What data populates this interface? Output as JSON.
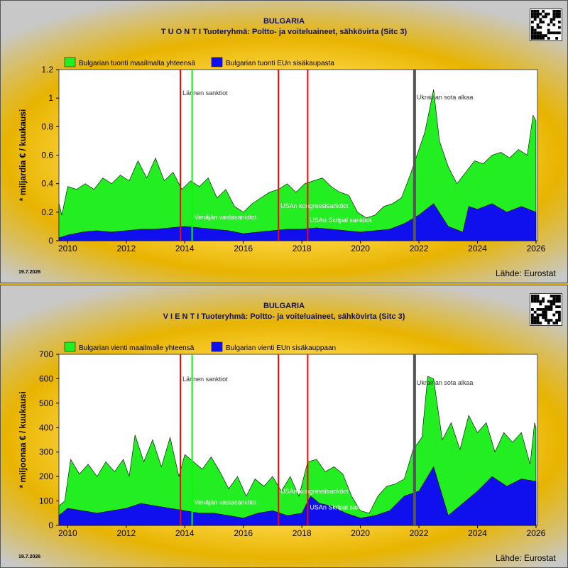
{
  "charts": [
    {
      "country": "BULGARIA",
      "subtitle": "T U O N T I Tuoteryhmä: Poltto- ja voiteluaineet, sähkövirta (Sitc 3)",
      "date_stamp": "19.7.2026",
      "source": "Lähde: Eurostat",
      "colors": {
        "world": "#22ee22",
        "eu": "#1010ee"
      },
      "chart_data": {
        "type": "area",
        "ylabel": "* miljardia € / kuukausi",
        "ylim": [
          0,
          1.2
        ],
        "yticks": [
          "0",
          "0.2",
          "0.4",
          "0.6",
          "0.8",
          "1",
          "1.2"
        ],
        "xlim": [
          2009.7,
          2026.05
        ],
        "xticks": [
          "2010",
          "2012",
          "2014",
          "2016",
          "2018",
          "2020",
          "2022",
          "2024",
          "2026"
        ],
        "legend": [
          "Bulgarian tuonti maailmalta yhteensä",
          "Bulgarian tuonti EUn sisäkaupasta"
        ],
        "series": [
          {
            "name": "Bulgarian tuonti maailmalta yhteensä",
            "points": [
              [
                2009.7,
                0.26
              ],
              [
                2009.8,
                0.18
              ],
              [
                2010.0,
                0.38
              ],
              [
                2010.3,
                0.36
              ],
              [
                2010.6,
                0.4
              ],
              [
                2010.9,
                0.36
              ],
              [
                2011.2,
                0.44
              ],
              [
                2011.5,
                0.4
              ],
              [
                2011.8,
                0.46
              ],
              [
                2012.1,
                0.42
              ],
              [
                2012.4,
                0.56
              ],
              [
                2012.7,
                0.44
              ],
              [
                2013.0,
                0.58
              ],
              [
                2013.3,
                0.42
              ],
              [
                2013.6,
                0.48
              ],
              [
                2013.9,
                0.36
              ],
              [
                2014.2,
                0.42
              ],
              [
                2014.5,
                0.38
              ],
              [
                2014.8,
                0.44
              ],
              [
                2015.1,
                0.3
              ],
              [
                2015.4,
                0.36
              ],
              [
                2015.7,
                0.24
              ],
              [
                2016.0,
                0.2
              ],
              [
                2016.3,
                0.26
              ],
              [
                2016.6,
                0.3
              ],
              [
                2016.9,
                0.34
              ],
              [
                2017.2,
                0.36
              ],
              [
                2017.5,
                0.4
              ],
              [
                2017.8,
                0.34
              ],
              [
                2018.1,
                0.4
              ],
              [
                2018.4,
                0.42
              ],
              [
                2018.7,
                0.44
              ],
              [
                2019.0,
                0.38
              ],
              [
                2019.3,
                0.34
              ],
              [
                2019.6,
                0.32
              ],
              [
                2019.9,
                0.2
              ],
              [
                2020.2,
                0.16
              ],
              [
                2020.5,
                0.18
              ],
              [
                2020.8,
                0.24
              ],
              [
                2021.1,
                0.26
              ],
              [
                2021.4,
                0.3
              ],
              [
                2021.7,
                0.46
              ],
              [
                2022.0,
                0.64
              ],
              [
                2022.2,
                0.76
              ],
              [
                2022.5,
                1.06
              ],
              [
                2022.7,
                0.7
              ],
              [
                2023.0,
                0.52
              ],
              [
                2023.3,
                0.4
              ],
              [
                2023.6,
                0.48
              ],
              [
                2023.9,
                0.56
              ],
              [
                2024.2,
                0.54
              ],
              [
                2024.5,
                0.6
              ],
              [
                2024.8,
                0.62
              ],
              [
                2025.1,
                0.58
              ],
              [
                2025.4,
                0.64
              ],
              [
                2025.7,
                0.6
              ],
              [
                2025.9,
                0.88
              ],
              [
                2026.0,
                0.84
              ]
            ]
          },
          {
            "name": "Bulgarian tuonti EUn sisäkaupasta",
            "points": [
              [
                2009.7,
                0.02
              ],
              [
                2010.0,
                0.04
              ],
              [
                2010.5,
                0.06
              ],
              [
                2011.0,
                0.07
              ],
              [
                2011.5,
                0.06
              ],
              [
                2012.0,
                0.07
              ],
              [
                2012.5,
                0.08
              ],
              [
                2013.0,
                0.08
              ],
              [
                2013.5,
                0.09
              ],
              [
                2014.0,
                0.1
              ],
              [
                2014.5,
                0.09
              ],
              [
                2015.0,
                0.08
              ],
              [
                2015.5,
                0.07
              ],
              [
                2016.0,
                0.05
              ],
              [
                2016.5,
                0.06
              ],
              [
                2017.0,
                0.07
              ],
              [
                2017.5,
                0.08
              ],
              [
                2018.0,
                0.08
              ],
              [
                2018.5,
                0.09
              ],
              [
                2019.0,
                0.08
              ],
              [
                2019.5,
                0.07
              ],
              [
                2020.0,
                0.06
              ],
              [
                2020.5,
                0.07
              ],
              [
                2021.0,
                0.08
              ],
              [
                2021.5,
                0.12
              ],
              [
                2022.0,
                0.18
              ],
              [
                2022.5,
                0.26
              ],
              [
                2023.0,
                0.1
              ],
              [
                2023.5,
                0.06
              ],
              [
                2023.7,
                0.24
              ],
              [
                2024.0,
                0.22
              ],
              [
                2024.5,
                0.26
              ],
              [
                2025.0,
                0.2
              ],
              [
                2025.5,
                0.24
              ],
              [
                2026.0,
                0.2
              ]
            ]
          }
        ],
        "events": [
          {
            "x": 2013.85,
            "color": "#ff0000",
            "label": "Lännen sanktiot",
            "label_y": 1.02
          },
          {
            "x": 2014.25,
            "color": "#00ff00",
            "label": "Venäjän vastasanktiot",
            "label_y": 0.15
          },
          {
            "x": 2017.2,
            "color": "#ff0000",
            "label": "USAn kongressisanktiot",
            "label_y": 0.23
          },
          {
            "x": 2018.2,
            "color": "#ff0000",
            "label": "USAn Skripal sanktiot",
            "label_y": 0.13
          },
          {
            "x": 2021.85,
            "color": "#555555",
            "label": "Ukrainan sota alkaa",
            "label_y": 0.99
          }
        ]
      }
    },
    {
      "country": "BULGARIA",
      "subtitle": "V I E N T I Tuoteryhmä: Poltto- ja voiteluaineet, sähkövirta (Sitc 3)",
      "date_stamp": "19.7.2026",
      "source": "Lähde: Eurostat",
      "colors": {
        "world": "#22ee22",
        "eu": "#1010ee"
      },
      "chart_data": {
        "type": "area",
        "ylabel": "* miljoonaa € / kuukausi",
        "ylim": [
          0,
          700
        ],
        "yticks": [
          "0",
          "100",
          "200",
          "300",
          "400",
          "500",
          "600",
          "700"
        ],
        "xlim": [
          2009.7,
          2026.05
        ],
        "xticks": [
          "2010",
          "2012",
          "2014",
          "2016",
          "2018",
          "2020",
          "2022",
          "2024",
          "2026"
        ],
        "legend": [
          "Bulgarian vienti maailmalle yhteensä",
          "Bulgarian vienti EUn sisäkauppaan"
        ],
        "series": [
          {
            "name": "Bulgarian vienti maailmalle yhteensä",
            "points": [
              [
                2009.7,
                80
              ],
              [
                2009.9,
                100
              ],
              [
                2010.1,
                270
              ],
              [
                2010.4,
                210
              ],
              [
                2010.7,
                250
              ],
              [
                2011.0,
                200
              ],
              [
                2011.3,
                260
              ],
              [
                2011.6,
                220
              ],
              [
                2011.9,
                270
              ],
              [
                2012.1,
                200
              ],
              [
                2012.3,
                370
              ],
              [
                2012.6,
                260
              ],
              [
                2012.9,
                350
              ],
              [
                2013.2,
                240
              ],
              [
                2013.5,
                360
              ],
              [
                2013.8,
                200
              ],
              [
                2014.0,
                290
              ],
              [
                2014.3,
                260
              ],
              [
                2014.6,
                230
              ],
              [
                2014.9,
                280
              ],
              [
                2015.2,
                220
              ],
              [
                2015.5,
                150
              ],
              [
                2015.8,
                200
              ],
              [
                2016.1,
                120
              ],
              [
                2016.4,
                190
              ],
              [
                2016.7,
                160
              ],
              [
                2017.0,
                200
              ],
              [
                2017.3,
                140
              ],
              [
                2017.6,
                200
              ],
              [
                2017.9,
                120
              ],
              [
                2018.2,
                260
              ],
              [
                2018.5,
                270
              ],
              [
                2018.8,
                220
              ],
              [
                2019.1,
                240
              ],
              [
                2019.4,
                210
              ],
              [
                2019.7,
                120
              ],
              [
                2020.0,
                60
              ],
              [
                2020.3,
                50
              ],
              [
                2020.6,
                120
              ],
              [
                2020.9,
                160
              ],
              [
                2021.2,
                170
              ],
              [
                2021.5,
                190
              ],
              [
                2021.8,
                310
              ],
              [
                2022.1,
                360
              ],
              [
                2022.3,
                610
              ],
              [
                2022.5,
                600
              ],
              [
                2022.8,
                350
              ],
              [
                2023.1,
                420
              ],
              [
                2023.4,
                310
              ],
              [
                2023.7,
                450
              ],
              [
                2024.0,
                380
              ],
              [
                2024.3,
                420
              ],
              [
                2024.6,
                300
              ],
              [
                2024.9,
                380
              ],
              [
                2025.2,
                340
              ],
              [
                2025.5,
                380
              ],
              [
                2025.8,
                250
              ],
              [
                2025.95,
                420
              ],
              [
                2026.0,
                400
              ]
            ]
          },
          {
            "name": "Bulgarian vienti EUn sisäkauppaan",
            "points": [
              [
                2009.7,
                40
              ],
              [
                2010.0,
                70
              ],
              [
                2010.5,
                60
              ],
              [
                2011.0,
                50
              ],
              [
                2011.5,
                60
              ],
              [
                2012.0,
                70
              ],
              [
                2012.5,
                90
              ],
              [
                2013.0,
                80
              ],
              [
                2013.5,
                70
              ],
              [
                2014.0,
                60
              ],
              [
                2014.5,
                50
              ],
              [
                2015.0,
                50
              ],
              [
                2015.5,
                40
              ],
              [
                2016.0,
                30
              ],
              [
                2016.5,
                50
              ],
              [
                2017.0,
                60
              ],
              [
                2017.5,
                40
              ],
              [
                2018.0,
                50
              ],
              [
                2018.3,
                120
              ],
              [
                2018.6,
                90
              ],
              [
                2019.0,
                80
              ],
              [
                2019.5,
                50
              ],
              [
                2020.0,
                30
              ],
              [
                2020.5,
                40
              ],
              [
                2021.0,
                60
              ],
              [
                2021.5,
                120
              ],
              [
                2022.0,
                140
              ],
              [
                2022.5,
                240
              ],
              [
                2023.0,
                40
              ],
              [
                2023.5,
                90
              ],
              [
                2024.0,
                140
              ],
              [
                2024.5,
                200
              ],
              [
                2025.0,
                160
              ],
              [
                2025.5,
                190
              ],
              [
                2026.0,
                180
              ]
            ]
          }
        ],
        "events": [
          {
            "x": 2013.85,
            "color": "#ff0000",
            "label": "Lännen sanktiot",
            "label_y": 590
          },
          {
            "x": 2014.25,
            "color": "#00ff00",
            "label": "Venäjän vastasanktiot",
            "label_y": 85
          },
          {
            "x": 2017.2,
            "color": "#ff0000",
            "label": "USAn kongressisanktiot",
            "label_y": 130
          },
          {
            "x": 2018.2,
            "color": "#ff0000",
            "label": "USAn Skripal sanktiot",
            "label_y": 65
          },
          {
            "x": 2021.85,
            "color": "#555555",
            "label": "Ukrainan sota alkaa",
            "label_y": 575
          }
        ]
      }
    }
  ]
}
